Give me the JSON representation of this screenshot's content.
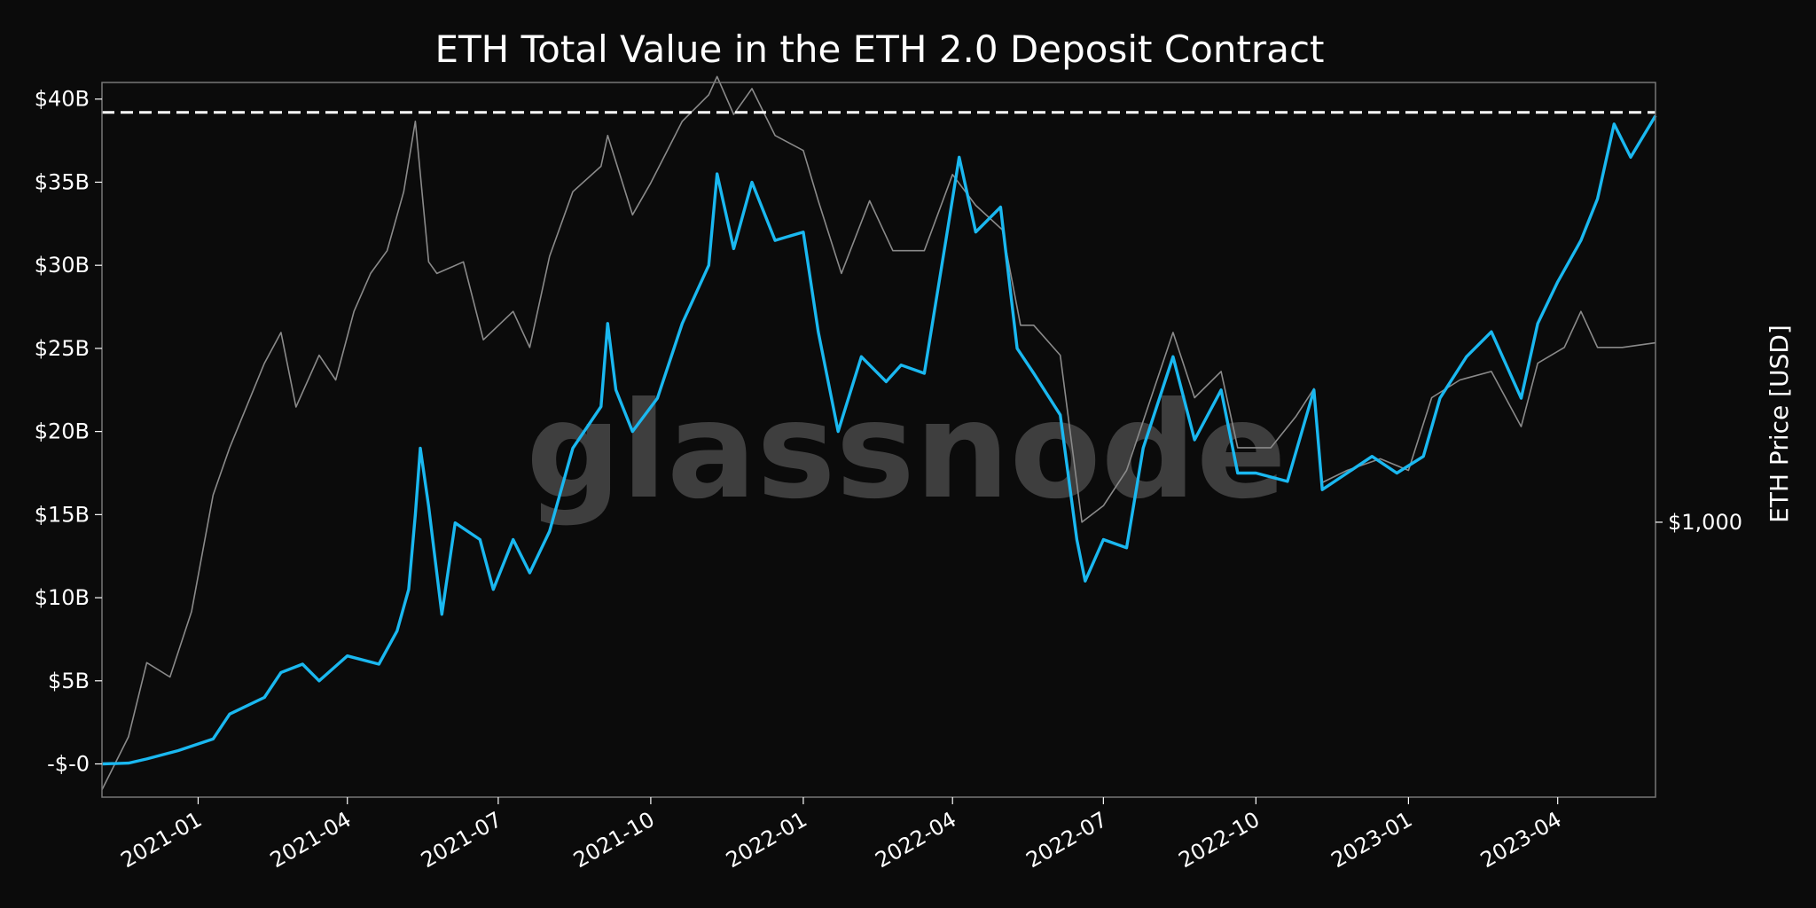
{
  "watermark": "glassnode",
  "chart_data": {
    "type": "line",
    "title": "ETH Total Value in the ETH 2.0 Deposit Contract",
    "xlabel": "",
    "ylabel": "",
    "y2label": "ETH Price [USD]",
    "y2_ticks": [
      "$1,000"
    ],
    "y2_tick_value": 1000,
    "y2_scale": "log",
    "y2lim": [
      380,
      4700
    ],
    "ylim": [
      -2000000000,
      41000000000
    ],
    "x_range": [
      "2020-11-04",
      "2023-05-30"
    ],
    "y_ticks": [
      {
        "label": "-$-0",
        "value": 0
      },
      {
        "label": "$5B",
        "value": 5000000000
      },
      {
        "label": "$10B",
        "value": 10000000000
      },
      {
        "label": "$15B",
        "value": 15000000000
      },
      {
        "label": "$20B",
        "value": 20000000000
      },
      {
        "label": "$25B",
        "value": 25000000000
      },
      {
        "label": "$30B",
        "value": 30000000000
      },
      {
        "label": "$35B",
        "value": 35000000000
      },
      {
        "label": "$40B",
        "value": 40000000000
      }
    ],
    "x_ticks": [
      {
        "label": "2021-01",
        "date": "2021-01-01"
      },
      {
        "label": "2021-04",
        "date": "2021-04-01"
      },
      {
        "label": "2021-07",
        "date": "2021-07-01"
      },
      {
        "label": "2021-10",
        "date": "2021-10-01"
      },
      {
        "label": "2022-01",
        "date": "2022-01-01"
      },
      {
        "label": "2022-04",
        "date": "2022-04-01"
      },
      {
        "label": "2022-07",
        "date": "2022-07-01"
      },
      {
        "label": "2022-10",
        "date": "2022-10-01"
      },
      {
        "label": "2023-01",
        "date": "2023-01-01"
      },
      {
        "label": "2023-04",
        "date": "2023-04-01"
      }
    ],
    "ath_line": {
      "value": 39200000000,
      "style": "dashed",
      "color": "#ffffff"
    },
    "grid": false,
    "background": "#0b0b0b",
    "series": [
      {
        "axis": "left",
        "color": "#1ab8f0",
        "points": [
          [
            "2020-11-04",
            0
          ],
          [
            "2020-11-20",
            50000000.0
          ],
          [
            "2020-12-01",
            300000000.0
          ],
          [
            "2020-12-20",
            800000000.0
          ],
          [
            "2021-01-10",
            1500000000.0
          ],
          [
            "2021-01-20",
            3000000000.0
          ],
          [
            "2021-02-10",
            4000000000.0
          ],
          [
            "2021-02-20",
            5500000000.0
          ],
          [
            "2021-03-05",
            6000000000.0
          ],
          [
            "2021-03-15",
            5000000000.0
          ],
          [
            "2021-04-01",
            6500000000.0
          ],
          [
            "2021-04-20",
            6000000000.0
          ],
          [
            "2021-05-01",
            8000000000.0
          ],
          [
            "2021-05-08",
            10500000000.0
          ],
          [
            "2021-05-12",
            15000000000.0
          ],
          [
            "2021-05-15",
            19000000000.0
          ],
          [
            "2021-05-20",
            15500000000.0
          ],
          [
            "2021-05-28",
            9000000000.0
          ],
          [
            "2021-06-05",
            14500000000.0
          ],
          [
            "2021-06-20",
            13500000000.0
          ],
          [
            "2021-06-28",
            10500000000.0
          ],
          [
            "2021-07-10",
            13500000000.0
          ],
          [
            "2021-07-20",
            11500000000.0
          ],
          [
            "2021-08-01",
            14000000000.0
          ],
          [
            "2021-08-15",
            19000000000.0
          ],
          [
            "2021-09-01",
            21500000000.0
          ],
          [
            "2021-09-05",
            26500000000.0
          ],
          [
            "2021-09-10",
            22500000000.0
          ],
          [
            "2021-09-20",
            20000000000.0
          ],
          [
            "2021-10-05",
            22000000000.0
          ],
          [
            "2021-10-20",
            26500000000.0
          ],
          [
            "2021-11-05",
            30000000000.0
          ],
          [
            "2021-11-10",
            35500000000.0
          ],
          [
            "2021-11-20",
            31000000000.0
          ],
          [
            "2021-12-01",
            35000000000.0
          ],
          [
            "2021-12-15",
            31500000000.0
          ],
          [
            "2022-01-01",
            32000000000.0
          ],
          [
            "2022-01-10",
            26000000000.0
          ],
          [
            "2022-01-22",
            20000000000.0
          ],
          [
            "2022-02-05",
            24500000000.0
          ],
          [
            "2022-02-20",
            23000000000.0
          ],
          [
            "2022-03-01",
            24000000000.0
          ],
          [
            "2022-03-15",
            23500000000.0
          ],
          [
            "2022-03-28",
            31500000000.0
          ],
          [
            "2022-04-05",
            36500000000.0
          ],
          [
            "2022-04-15",
            32000000000.0
          ],
          [
            "2022-04-30",
            33500000000.0
          ],
          [
            "2022-05-10",
            25000000000.0
          ],
          [
            "2022-05-20",
            23500000000.0
          ],
          [
            "2022-06-05",
            21000000000.0
          ],
          [
            "2022-06-15",
            13500000000.0
          ],
          [
            "2022-06-20",
            11000000000.0
          ],
          [
            "2022-07-01",
            13500000000.0
          ],
          [
            "2022-07-15",
            13000000000.0
          ],
          [
            "2022-07-25",
            19000000000.0
          ],
          [
            "2022-08-12",
            24500000000.0
          ],
          [
            "2022-08-25",
            19500000000.0
          ],
          [
            "2022-09-10",
            22500000000.0
          ],
          [
            "2022-09-20",
            17500000000.0
          ],
          [
            "2022-10-01",
            17500000000.0
          ],
          [
            "2022-10-20",
            17000000000.0
          ],
          [
            "2022-11-05",
            22500000000.0
          ],
          [
            "2022-11-10",
            16500000000.0
          ],
          [
            "2022-11-25",
            17500000000.0
          ],
          [
            "2022-12-10",
            18500000000.0
          ],
          [
            "2022-12-25",
            17500000000.0
          ],
          [
            "2023-01-10",
            18500000000.0
          ],
          [
            "2023-01-20",
            22000000000.0
          ],
          [
            "2023-02-05",
            24500000000.0
          ],
          [
            "2023-02-20",
            26000000000.0
          ],
          [
            "2023-03-10",
            22000000000.0
          ],
          [
            "2023-03-20",
            26500000000.0
          ],
          [
            "2023-04-01",
            29000000000.0
          ],
          [
            "2023-04-15",
            31500000000.0
          ],
          [
            "2023-04-25",
            34000000000.0
          ],
          [
            "2023-05-05",
            38500000000.0
          ],
          [
            "2023-05-15",
            36500000000.0
          ],
          [
            "2023-05-30",
            39000000000.0
          ]
        ]
      },
      {
        "axis": "right",
        "color": "#8a8a8a",
        "points": [
          [
            "2020-11-04",
            390
          ],
          [
            "2020-11-20",
            470
          ],
          [
            "2020-12-01",
            610
          ],
          [
            "2020-12-15",
            580
          ],
          [
            "2020-12-28",
            730
          ],
          [
            "2021-01-10",
            1100
          ],
          [
            "2021-01-20",
            1300
          ],
          [
            "2021-02-10",
            1750
          ],
          [
            "2021-02-20",
            1950
          ],
          [
            "2021-03-01",
            1500
          ],
          [
            "2021-03-15",
            1800
          ],
          [
            "2021-03-25",
            1650
          ],
          [
            "2021-04-05",
            2100
          ],
          [
            "2021-04-15",
            2400
          ],
          [
            "2021-04-25",
            2600
          ],
          [
            "2021-05-05",
            3200
          ],
          [
            "2021-05-12",
            4100
          ],
          [
            "2021-05-20",
            2500
          ],
          [
            "2021-05-25",
            2400
          ],
          [
            "2021-06-10",
            2500
          ],
          [
            "2021-06-22",
            1900
          ],
          [
            "2021-07-10",
            2100
          ],
          [
            "2021-07-20",
            1850
          ],
          [
            "2021-08-01",
            2550
          ],
          [
            "2021-08-15",
            3200
          ],
          [
            "2021-09-01",
            3500
          ],
          [
            "2021-09-05",
            3900
          ],
          [
            "2021-09-20",
            2950
          ],
          [
            "2021-10-01",
            3300
          ],
          [
            "2021-10-20",
            4100
          ],
          [
            "2021-11-05",
            4500
          ],
          [
            "2021-11-10",
            4800
          ],
          [
            "2021-11-20",
            4200
          ],
          [
            "2021-12-01",
            4600
          ],
          [
            "2021-12-15",
            3900
          ],
          [
            "2022-01-01",
            3700
          ],
          [
            "2022-01-10",
            3100
          ],
          [
            "2022-01-24",
            2400
          ],
          [
            "2022-02-10",
            3100
          ],
          [
            "2022-02-24",
            2600
          ],
          [
            "2022-03-15",
            2600
          ],
          [
            "2022-04-01",
            3400
          ],
          [
            "2022-04-15",
            3050
          ],
          [
            "2022-05-01",
            2800
          ],
          [
            "2022-05-12",
            2000
          ],
          [
            "2022-05-20",
            2000
          ],
          [
            "2022-06-05",
            1800
          ],
          [
            "2022-06-18",
            1000
          ],
          [
            "2022-07-01",
            1060
          ],
          [
            "2022-07-15",
            1200
          ],
          [
            "2022-08-12",
            1950
          ],
          [
            "2022-08-25",
            1550
          ],
          [
            "2022-09-10",
            1700
          ],
          [
            "2022-09-20",
            1300
          ],
          [
            "2022-10-10",
            1300
          ],
          [
            "2022-10-25",
            1450
          ],
          [
            "2022-11-05",
            1600
          ],
          [
            "2022-11-10",
            1150
          ],
          [
            "2022-11-25",
            1200
          ],
          [
            "2022-12-15",
            1250
          ],
          [
            "2023-01-01",
            1200
          ],
          [
            "2023-01-15",
            1550
          ],
          [
            "2023-02-01",
            1650
          ],
          [
            "2023-02-20",
            1700
          ],
          [
            "2023-03-10",
            1400
          ],
          [
            "2023-03-20",
            1750
          ],
          [
            "2023-04-05",
            1850
          ],
          [
            "2023-04-15",
            2100
          ],
          [
            "2023-04-25",
            1850
          ],
          [
            "2023-05-10",
            1850
          ],
          [
            "2023-05-30",
            1880
          ]
        ]
      }
    ]
  }
}
